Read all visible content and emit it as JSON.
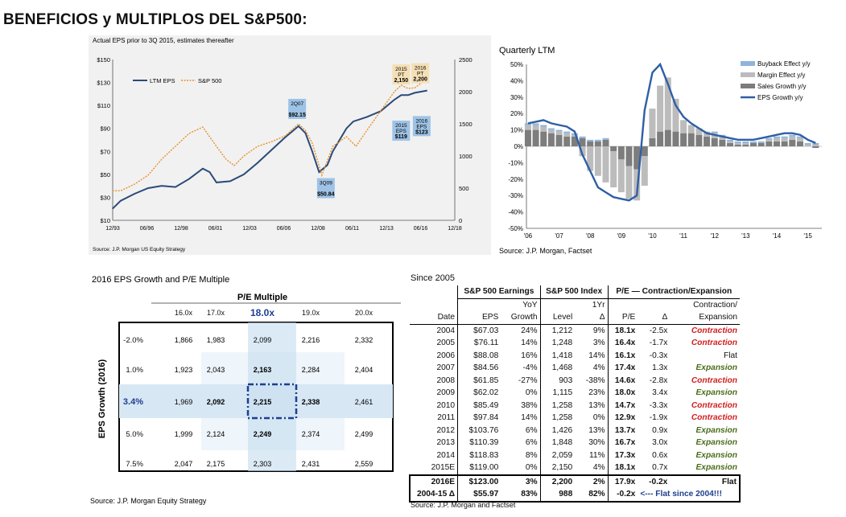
{
  "main_title": "BENEFICIOS y MULTIPLOS DEL S&P500:",
  "chart_data": [
    {
      "type": "line",
      "title": "Actual EPS prior to 3Q 2015, estimates thereafter",
      "source": "Source: J.P. Morgan US Equity Strategy",
      "x_tick_labels": [
        "12/93",
        "06/96",
        "12/98",
        "06/01",
        "12/03",
        "06/06",
        "12/08",
        "06/11",
        "12/13",
        "06/16",
        "12/18"
      ],
      "y_left_ticks": [
        "$150",
        "$130",
        "$110",
        "$90",
        "$70",
        "$50",
        "$30",
        "$10"
      ],
      "y_right_ticks": [
        "2500",
        "2000",
        "1500",
        "1000",
        "500",
        "0"
      ],
      "ylim_left": [
        10,
        150
      ],
      "ylim_right": [
        0,
        2500
      ],
      "xlim": [
        1993.92,
        2018.92
      ],
      "legend": [
        "LTM EPS",
        "S&P 500"
      ],
      "series": [
        {
          "name": "LTM EPS",
          "axis": "left",
          "color": "#2b4a78",
          "x": [
            1993.9,
            1994.5,
            1995.5,
            1996.5,
            1997.5,
            1998.5,
            1999.5,
            2000.5,
            2001.0,
            2001.5,
            2002.5,
            2003.5,
            2004.5,
            2005.5,
            2006.5,
            2007.5,
            2008.0,
            2008.5,
            2009.0,
            2009.6,
            2010.0,
            2010.5,
            2011.0,
            2011.5,
            2012.5,
            2013.5,
            2014.5,
            2015.0,
            2015.5,
            2016.0,
            2016.9
          ],
          "y": [
            20,
            27,
            33,
            38,
            40,
            39,
            46,
            55,
            52,
            43,
            44,
            50,
            60,
            71,
            82,
            92,
            86,
            70,
            52,
            58,
            70,
            80,
            90,
            96,
            100,
            105,
            115,
            119,
            119,
            121,
            123
          ]
        },
        {
          "name": "S&P 500",
          "axis": "right",
          "color": "#e8912b",
          "x": [
            1993.9,
            1994.5,
            1995.5,
            1996.5,
            1997.5,
            1998.5,
            1999.5,
            2000.5,
            2001.0,
            2001.5,
            2002.2,
            2002.8,
            2003.5,
            2004.5,
            2005.5,
            2006.5,
            2007.5,
            2008.0,
            2008.5,
            2009.0,
            2009.2,
            2010.0,
            2011.0,
            2011.7,
            2012.5,
            2013.5,
            2014.5,
            2015.0,
            2015.5,
            2016.0,
            2016.9
          ],
          "y": [
            460,
            460,
            560,
            700,
            950,
            1150,
            1350,
            1450,
            1300,
            1150,
            950,
            850,
            1000,
            1150,
            1220,
            1310,
            1500,
            1400,
            1200,
            850,
            700,
            1150,
            1300,
            1150,
            1400,
            1700,
            2000,
            2100,
            2050,
            2060,
            2200
          ]
        }
      ],
      "annotations": [
        {
          "label": "2Q07",
          "value": "$92.15"
        },
        {
          "label": "3Q09",
          "value": "$50.84"
        },
        {
          "label": "2015 EPS",
          "value": "$119"
        },
        {
          "label": "2016 EPS",
          "value": "$123"
        },
        {
          "label": "2015 PT",
          "value": "2,150"
        },
        {
          "label": "2016 PT",
          "value": "2,200"
        }
      ]
    },
    {
      "type": "bar",
      "title": "Quarterly LTM",
      "source": "Source: J.P. Morgan, Factset",
      "x_tick_labels": [
        "'06",
        "'07",
        "'08",
        "'09",
        "'10",
        "'11",
        "'12",
        "'13",
        "'14",
        "'15"
      ],
      "y_ticks": [
        "50%",
        "40%",
        "30%",
        "20%",
        "10%",
        "0%",
        "-10%",
        "-20%",
        "-30%",
        "-40%",
        "-50%"
      ],
      "ylim": [
        -50,
        50
      ],
      "xlim": [
        2005.95,
        2015.45
      ],
      "legend": [
        "Buyback Effect y/y",
        "Margin Effect y/y",
        "Sales Growth y/y",
        "EPS Growth y/y"
      ],
      "colors": {
        "buyback": "#8fb4dc",
        "margin": "#bcbcbc",
        "sales": "#7d7d7d",
        "eps": "#2f5fa5"
      },
      "x": [
        2006.0,
        2006.25,
        2006.5,
        2006.75,
        2007.0,
        2007.25,
        2007.5,
        2007.75,
        2008.0,
        2008.25,
        2008.5,
        2008.75,
        2009.0,
        2009.25,
        2009.5,
        2009.75,
        2010.0,
        2010.25,
        2010.5,
        2010.75,
        2011.0,
        2011.25,
        2011.5,
        2011.75,
        2012.0,
        2012.25,
        2012.5,
        2012.75,
        2013.0,
        2013.25,
        2013.5,
        2013.75,
        2014.0,
        2014.25,
        2014.5,
        2014.75,
        2015.0,
        2015.25
      ],
      "sales": [
        10,
        10,
        9,
        8,
        7,
        6,
        6,
        5,
        3,
        3,
        4,
        -3,
        -8,
        -12,
        -14,
        -6,
        5,
        9,
        10,
        9,
        8,
        8,
        7,
        6,
        5,
        4,
        2,
        1,
        1,
        2,
        2,
        3,
        3,
        3,
        4,
        3,
        0,
        -1
      ],
      "margin": [
        3,
        3,
        3,
        2,
        2,
        2,
        1,
        -6,
        -15,
        -18,
        -22,
        -22,
        -20,
        -20,
        -19,
        -18,
        18,
        28,
        32,
        20,
        8,
        5,
        4,
        3,
        3,
        2,
        1,
        1,
        1,
        0,
        0,
        1,
        2,
        2,
        2,
        2,
        1,
        1
      ],
      "buyback": [
        1,
        1,
        1,
        1,
        1,
        1,
        1,
        1,
        1,
        1,
        1,
        0,
        0,
        0,
        0,
        0,
        0,
        0,
        0,
        0,
        0,
        0,
        0,
        0,
        1,
        1,
        1,
        1,
        1,
        1,
        1,
        1,
        1,
        1,
        1,
        1,
        1,
        1
      ],
      "eps": [
        14,
        15,
        16,
        14,
        13,
        12,
        9,
        -5,
        -15,
        -25,
        -28,
        -31,
        -32,
        -33,
        -30,
        22,
        45,
        50,
        38,
        25,
        18,
        14,
        11,
        8,
        7,
        6,
        5,
        4,
        4,
        4,
        5,
        6,
        7,
        8,
        8,
        7,
        4,
        2
      ]
    },
    {
      "type": "table",
      "title": "2016 EPS Growth and P/E Multiple",
      "source": "Source: J.P. Morgan Equity Strategy",
      "col_header": "P/E Multiple",
      "row_header": "EPS Growth (2016)",
      "columns": [
        "16.0x",
        "17.0x",
        "18.0x",
        "19.0x",
        "20.0x"
      ],
      "rows": [
        "-2.0%",
        "1.0%",
        "3.4%",
        "5.0%",
        "7.5%"
      ],
      "values": [
        [
          "1,866",
          "1,983",
          "2,099",
          "2,216",
          "2,332"
        ],
        [
          "1,923",
          "2,043",
          "2,163",
          "2,284",
          "2,404"
        ],
        [
          "1,969",
          "2,092",
          "2,215",
          "2,338",
          "2,461"
        ],
        [
          "1,999",
          "2,124",
          "2,249",
          "2,374",
          "2,499"
        ],
        [
          "2,047",
          "2,175",
          "2,303",
          "2,431",
          "2,559"
        ]
      ]
    },
    {
      "type": "table",
      "title": "Since 2005",
      "source": "Source: J.P. Morgan and Factset",
      "group_headers": [
        "S&P 500 Earnings",
        "S&P 500 Index",
        "P/E — Contraction/Expansion"
      ],
      "header_top": [
        "YoY",
        "1Yr",
        "Contraction/"
      ],
      "columns": [
        "Date",
        "EPS",
        "Growth",
        "Level",
        "Δ",
        "P/E",
        "Δ",
        "Expansion"
      ],
      "rows": [
        [
          "2004",
          "$67.03",
          "24%",
          "1,212",
          "9%",
          "18.1x",
          "-2.5x",
          "Contraction"
        ],
        [
          "2005",
          "$76.11",
          "14%",
          "1,248",
          "3%",
          "16.4x",
          "-1.7x",
          "Contraction"
        ],
        [
          "2006",
          "$88.08",
          "16%",
          "1,418",
          "14%",
          "16.1x",
          "-0.3x",
          "Flat"
        ],
        [
          "2007",
          "$84.56",
          "-4%",
          "1,468",
          "4%",
          "17.4x",
          "1.3x",
          "Expansion"
        ],
        [
          "2008",
          "$61.85",
          "-27%",
          "903",
          "-38%",
          "14.6x",
          "-2.8x",
          "Contraction"
        ],
        [
          "2009",
          "$62.02",
          "0%",
          "1,115",
          "23%",
          "18.0x",
          "3.4x",
          "Expansion"
        ],
        [
          "2010",
          "$85.49",
          "38%",
          "1,258",
          "13%",
          "14.7x",
          "-3.3x",
          "Contraction"
        ],
        [
          "2011",
          "$97.84",
          "14%",
          "1,258",
          "0%",
          "12.9x",
          "-1.9x",
          "Contraction"
        ],
        [
          "2012",
          "$103.76",
          "6%",
          "1,426",
          "13%",
          "13.7x",
          "0.9x",
          "Expansion"
        ],
        [
          "2013",
          "$110.39",
          "6%",
          "1,848",
          "30%",
          "16.7x",
          "3.0x",
          "Expansion"
        ],
        [
          "2014",
          "$118.83",
          "8%",
          "2,059",
          "11%",
          "17.3x",
          "0.6x",
          "Expansion"
        ],
        [
          "2015E",
          "$119.00",
          "0%",
          "2,150",
          "4%",
          "18.1x",
          "0.7x",
          "Expansion"
        ]
      ],
      "summary": [
        [
          "2016E",
          "$123.00",
          "3%",
          "2,200",
          "2%",
          "17.9x",
          "-0.2x",
          "Flat"
        ],
        [
          "2004-15 Δ",
          "$55.97",
          "83%",
          "988",
          "82%",
          "-0.2x",
          "<--- Flat since 2004!!!",
          ""
        ]
      ]
    }
  ]
}
